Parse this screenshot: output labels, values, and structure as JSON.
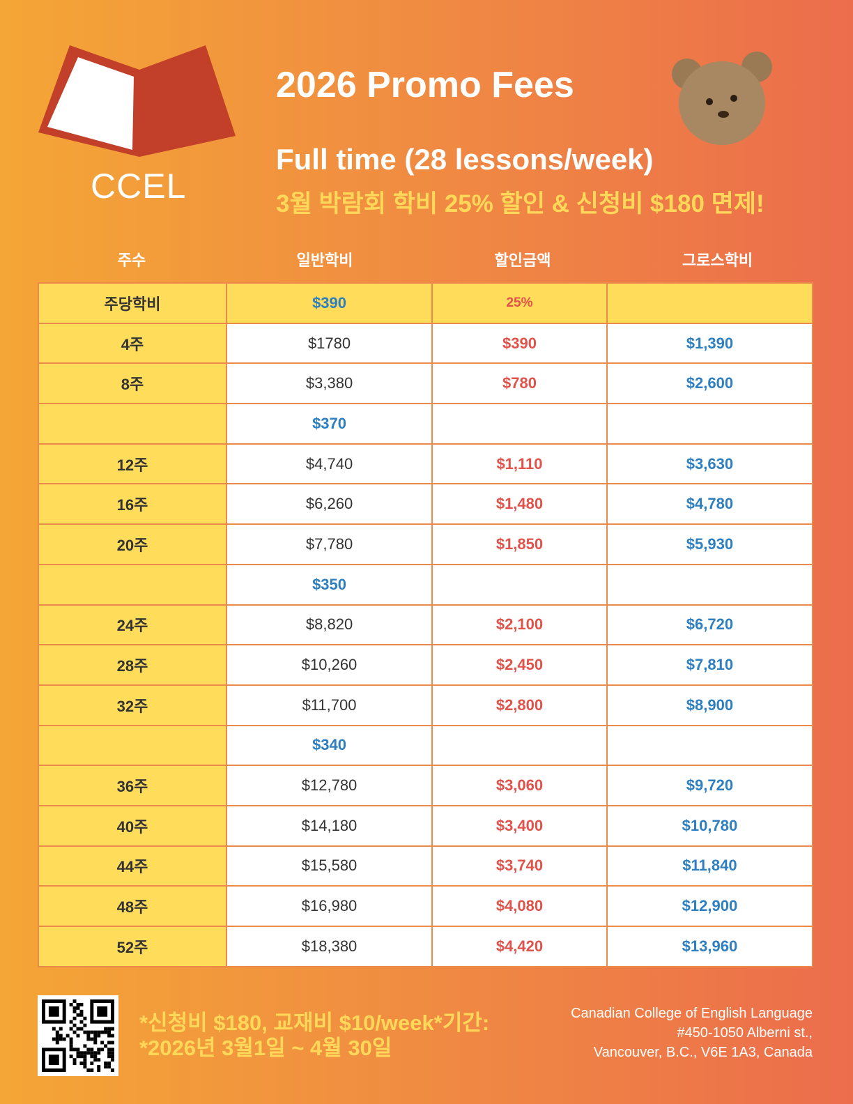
{
  "logo": {
    "text": "CCEL"
  },
  "header": {
    "title": "2026 Promo Fees",
    "subtitle": "Full time  (28 lessons/week)",
    "promo": "3월 박람회 학비 25% 할인 & 신청비 $180 면제!"
  },
  "table": {
    "columns": [
      "주수",
      "일반학비",
      "할인금액",
      "그로스학비"
    ],
    "rows": [
      {
        "week": "주당학비",
        "regular": "$390",
        "discount": "25%",
        "net": "",
        "rate": true
      },
      {
        "week": "4주",
        "regular": "$1780",
        "discount": "$390",
        "net": "$1,390"
      },
      {
        "week": "8주",
        "regular": "$3,380",
        "discount": "$780",
        "net": "$2,600"
      },
      {
        "week": "",
        "regular": "$370",
        "discount": "",
        "net": "",
        "subrate": true
      },
      {
        "week": "12주",
        "regular": "$4,740",
        "discount": "$1,110",
        "net": "$3,630"
      },
      {
        "week": "16주",
        "regular": "$6,260",
        "discount": "$1,480",
        "net": "$4,780"
      },
      {
        "week": "20주",
        "regular": "$7,780",
        "discount": "$1,850",
        "net": "$5,930"
      },
      {
        "week": "",
        "regular": "$350",
        "discount": "",
        "net": "",
        "subrate": true
      },
      {
        "week": "24주",
        "regular": "$8,820",
        "discount": "$2,100",
        "net": "$6,720"
      },
      {
        "week": "28주",
        "regular": "$10,260",
        "discount": "$2,450",
        "net": "$7,810"
      },
      {
        "week": "32주",
        "regular": "$11,700",
        "discount": "$2,800",
        "net": "$8,900"
      },
      {
        "week": "",
        "regular": "$340",
        "discount": "",
        "net": "",
        "subrate": true
      },
      {
        "week": "36주",
        "regular": "$12,780",
        "discount": "$3,060",
        "net": "$9,720"
      },
      {
        "week": "40주",
        "regular": "$14,180",
        "discount": "$3,400",
        "net": "$10,780"
      },
      {
        "week": "44주",
        "regular": "$15,580",
        "discount": "$3,740",
        "net": "$11,840"
      },
      {
        "week": "48주",
        "regular": "$16,980",
        "discount": "$4,080",
        "net": "$12,900"
      },
      {
        "week": "52주",
        "regular": "$18,380",
        "discount": "$4,420",
        "net": "$13,960"
      }
    ]
  },
  "footer": {
    "note_line1": "*신청비 $180, 교재비  $10/week*기간:",
    "note_line2": "*2026년 3월1일 ~ 4월 30일",
    "address": [
      "Canadian College of English Language",
      "#450-1050 Alberni st.,",
      "Vancouver, B.C., V6E 1A3, Canada"
    ]
  },
  "colors": {
    "yellow": "#ffdc5a",
    "blue": "#2e7fc0",
    "red": "#e0524a",
    "border": "#ec8a4c"
  }
}
